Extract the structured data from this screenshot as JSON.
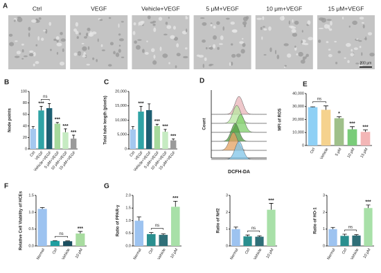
{
  "images": {
    "panel": "A",
    "labels": [
      "Ctrl",
      "VEGF",
      "Vehicle+VEGF",
      "5 μM+VEGF",
      "10 μm+VEGF",
      "15 μM+VEGF"
    ],
    "scale_bar": "200 μm"
  },
  "chart_data": [
    {
      "type": "bar",
      "panel": "B",
      "ylabel": "Node points",
      "categories": [
        "Ctrl",
        "VEGF",
        "Vehicle+VEGF",
        "5 μM+VEGF",
        "10 μM+VEGF",
        "15 μM+VEGF"
      ],
      "values": [
        35,
        67,
        71,
        44,
        29,
        18
      ],
      "errors": [
        4,
        7,
        8,
        2,
        6,
        6
      ],
      "colors": [
        "#a4c8f0",
        "#2fa3a5",
        "#1d5f72",
        "#a6d99c",
        "#c6ebc2",
        "#9b9b9b"
      ],
      "significance": [
        null,
        "***",
        "ns",
        "***",
        "***",
        "***"
      ],
      "ylim": [
        0,
        100
      ],
      "yticks": [
        0,
        20,
        40,
        60,
        80,
        100
      ]
    },
    {
      "type": "bar",
      "panel": "C",
      "ylabel": "Total tube length (pixels)",
      "categories": [
        "Ctrl",
        "VEGF",
        "Vehicle+VEGF",
        "5 μM+VEGF",
        "10 μM+VEGF",
        "15 μM+VEGF"
      ],
      "values": [
        6800,
        13000,
        13500,
        8000,
        6000,
        3000
      ],
      "errors": [
        1000,
        1800,
        2200,
        600,
        800,
        500
      ],
      "colors": [
        "#a4c8f0",
        "#2fa3a5",
        "#1d5f72",
        "#a6d99c",
        "#c6ebc2",
        "#9b9b9b"
      ],
      "significance": [
        null,
        "***",
        null,
        "***",
        "***",
        "***"
      ],
      "ylim": [
        0,
        20000
      ],
      "yticks": [
        0,
        {
          "value": 5000,
          "label": "5,000"
        },
        {
          "value": 10000,
          "label": "10,000"
        },
        {
          "value": 15000,
          "label": "15,000"
        },
        {
          "value": 20000,
          "label": "20,000"
        }
      ]
    },
    {
      "type": "ridgeline",
      "panel": "D",
      "xlabel": "DCFH-DA",
      "ylabel": "Count",
      "colors": [
        "#e8b4b8",
        "#b8e6a0",
        "#7fcf6a",
        "#4e9a3e",
        "#e3a060",
        "#7fc4e8"
      ]
    },
    {
      "type": "bar",
      "panel": "E",
      "ylabel": "MFI of ROS",
      "categories": [
        "Ctrl",
        "Vehicle",
        "5 μM",
        "10 μM",
        "15 μM"
      ],
      "values": [
        29500,
        27500,
        21000,
        12500,
        10500
      ],
      "errors": [
        300,
        3000,
        1200,
        2000,
        1500
      ],
      "colors": [
        "#8fd0f5",
        "#f5d28e",
        "#9fc08a",
        "#79cc79",
        "#f3b6b6"
      ],
      "significance": [
        null,
        "ns",
        "*",
        "***",
        "***"
      ],
      "ylim": [
        0,
        40000
      ],
      "yticks": [
        0,
        {
          "value": 10000,
          "label": "10,000"
        },
        {
          "value": 20000,
          "label": "20,000"
        },
        {
          "value": 30000,
          "label": "30,000"
        },
        {
          "value": 40000,
          "label": "40,000"
        }
      ]
    },
    {
      "type": "bar",
      "panel": "F",
      "ylabel": "Relative Cell Viability of HCEs",
      "categories": [
        "Normal",
        "Ctrl",
        "Vehicle",
        "10 μM"
      ],
      "values": [
        1.1,
        0.15,
        0.14,
        0.37
      ],
      "errors": [
        0.04,
        0.01,
        0.01,
        0.06
      ],
      "colors": [
        "#9dc3f0",
        "#1f9fa0",
        "#1b4f5f",
        "#a8dca0"
      ],
      "significance": [
        null,
        null,
        "ns",
        "***"
      ],
      "ylim": [
        0,
        1.5
      ],
      "yticks": [
        {
          "value": 0,
          "label": "0.0"
        },
        {
          "value": 0.5,
          "label": "0.5"
        },
        {
          "value": 1,
          "label": "1.0"
        },
        {
          "value": 1.5,
          "label": "1.5"
        }
      ]
    },
    {
      "type": "bar",
      "panel": "G",
      "ylabel": "Ratio of PPAR-γ",
      "categories": [
        "Normal",
        "Ctrl",
        "Vehicle",
        "10 μM"
      ],
      "values": [
        1.0,
        0.47,
        0.44,
        1.55
      ],
      "errors": [
        0.15,
        0.06,
        0.04,
        0.22
      ],
      "colors": [
        "#9dc3f0",
        "#2a8f8f",
        "#2f6f78",
        "#a8e0a8"
      ],
      "significance": [
        null,
        null,
        "ns",
        "***"
      ],
      "ylim": [
        0,
        2
      ],
      "yticks": [
        {
          "value": 0,
          "label": "0.0"
        },
        {
          "value": 0.5,
          "label": "0.5"
        },
        {
          "value": 1,
          "label": "1.0"
        },
        {
          "value": 1.5,
          "label": "1.5"
        },
        {
          "value": 2,
          "label": "2.0"
        }
      ]
    },
    {
      "type": "bar",
      "ylabel": "Ratio of Nrf2",
      "categories": [
        "Normal",
        "Ctrl",
        "Vehicle",
        "10 μM"
      ],
      "values": [
        1.0,
        0.57,
        0.55,
        2.15
      ],
      "errors": [
        0.12,
        0.08,
        0.05,
        0.38
      ],
      "colors": [
        "#9dc3f0",
        "#2a8f8f",
        "#2f6f78",
        "#a8e0a8"
      ],
      "significance": [
        null,
        null,
        "ns",
        "***"
      ],
      "ylim": [
        0,
        3
      ],
      "yticks": [
        0,
        1,
        2,
        3
      ]
    },
    {
      "type": "bar",
      "ylabel": "Ratio of HO-1",
      "categories": [
        "Normal",
        "Ctrl",
        "Vehicle",
        "10 μM"
      ],
      "values": [
        1.0,
        0.6,
        0.62,
        2.25
      ],
      "errors": [
        0.1,
        0.1,
        0.05,
        0.18
      ],
      "colors": [
        "#9dc3f0",
        "#2a8f8f",
        "#2f6f78",
        "#a8e0a8"
      ],
      "significance": [
        null,
        null,
        "ns",
        "***"
      ],
      "ylim": [
        0,
        3
      ],
      "yticks": [
        0,
        1,
        2,
        3
      ]
    }
  ]
}
